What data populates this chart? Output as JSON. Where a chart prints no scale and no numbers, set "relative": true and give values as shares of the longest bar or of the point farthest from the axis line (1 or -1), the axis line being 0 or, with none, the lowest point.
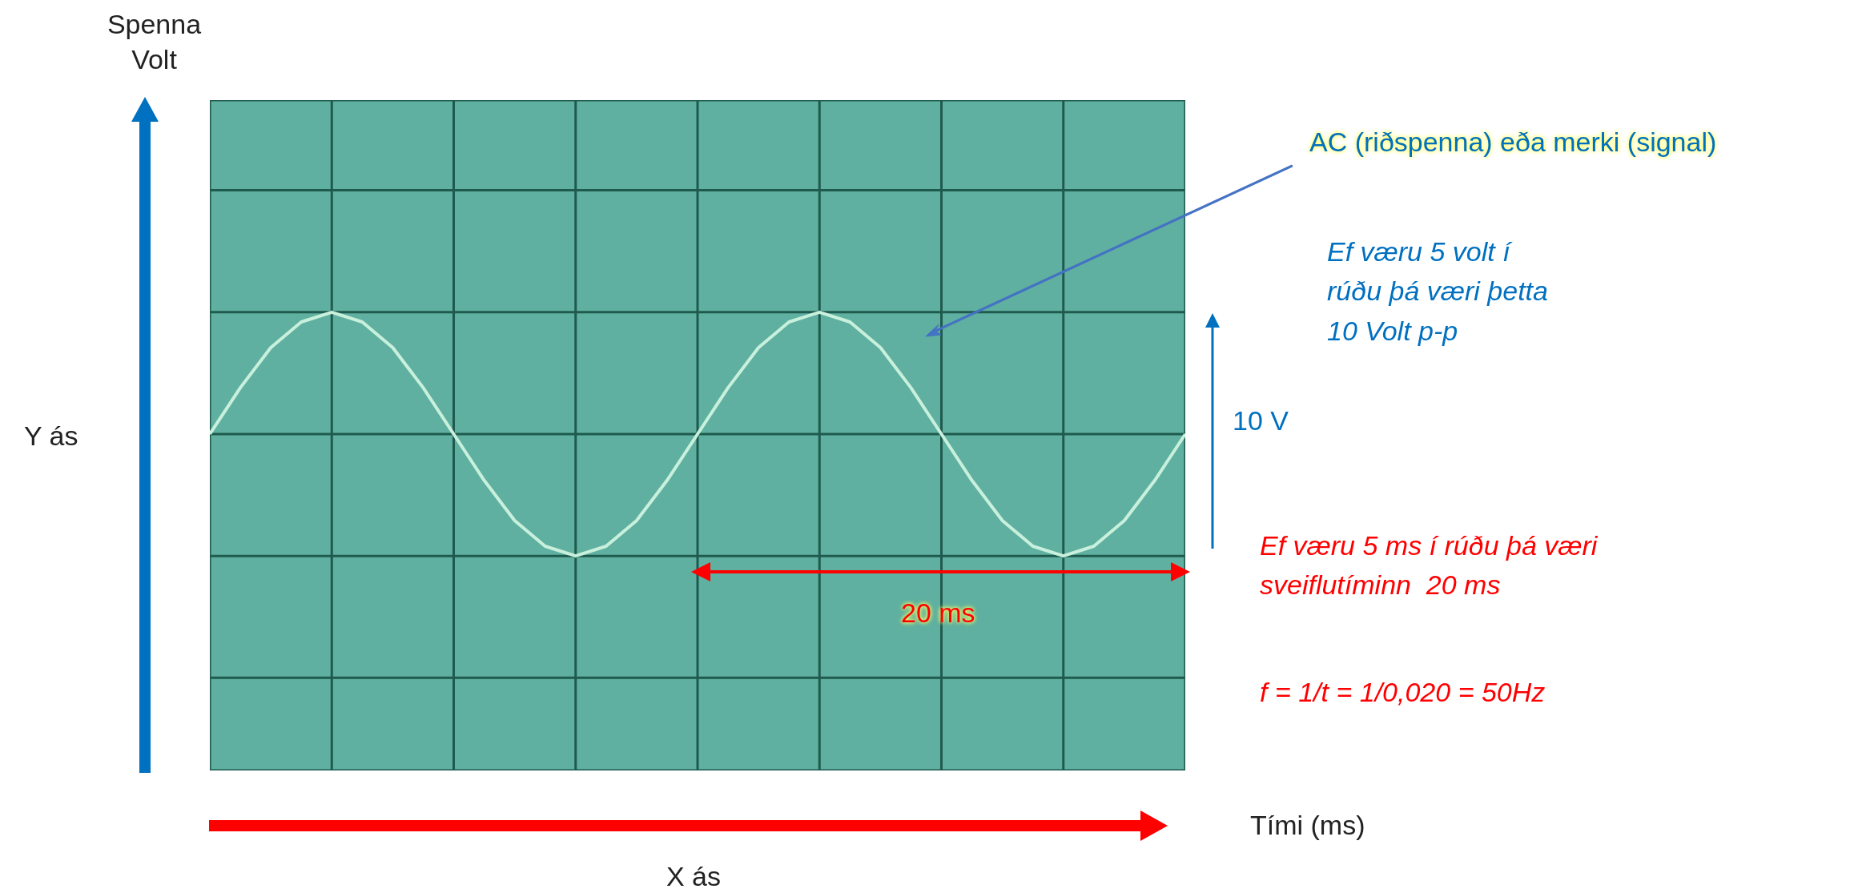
{
  "chart_data": {
    "type": "line",
    "relative": true,
    "grid": true,
    "legend": false,
    "marker": "none",
    "line_style": "solid",
    "categories": [
      null,
      null,
      null,
      null,
      null,
      null,
      null,
      null,
      null,
      null,
      null,
      null,
      null,
      null,
      null,
      null,
      null,
      null,
      null,
      null,
      null,
      null,
      null,
      null,
      null,
      null,
      null,
      null,
      null,
      null,
      null,
      null,
      null
    ],
    "series": [
      {
        "color": "#c8f0dc",
        "values": [
          0,
          0.38,
          0.71,
          0.92,
          1,
          0.92,
          0.71,
          0.38,
          0,
          -0.38,
          -0.71,
          -0.92,
          -1,
          -0.92,
          -0.71,
          -0.38,
          0,
          0.38,
          0.71,
          0.92,
          1,
          0.92,
          0.71,
          0.38,
          0,
          -0.38,
          -0.71,
          -0.92,
          -1,
          -0.92,
          -0.71,
          -0.38,
          0
        ]
      }
    ],
    "annotations": [
      "Spenna Volt",
      "Tími (ms)",
      "Y ás",
      "X ás",
      "AC (riðspenna) eða merki (signal)",
      "Ef væru 5 volt í rúðu þá væri þetta 10 Volt p-p",
      "10 V",
      "Ef væru 5 ms í rúðu þá væri sveiflutíminn  20 ms",
      "20 ms",
      "f = 1/t = 1/0,020 = 50Hz"
    ]
  }
}
